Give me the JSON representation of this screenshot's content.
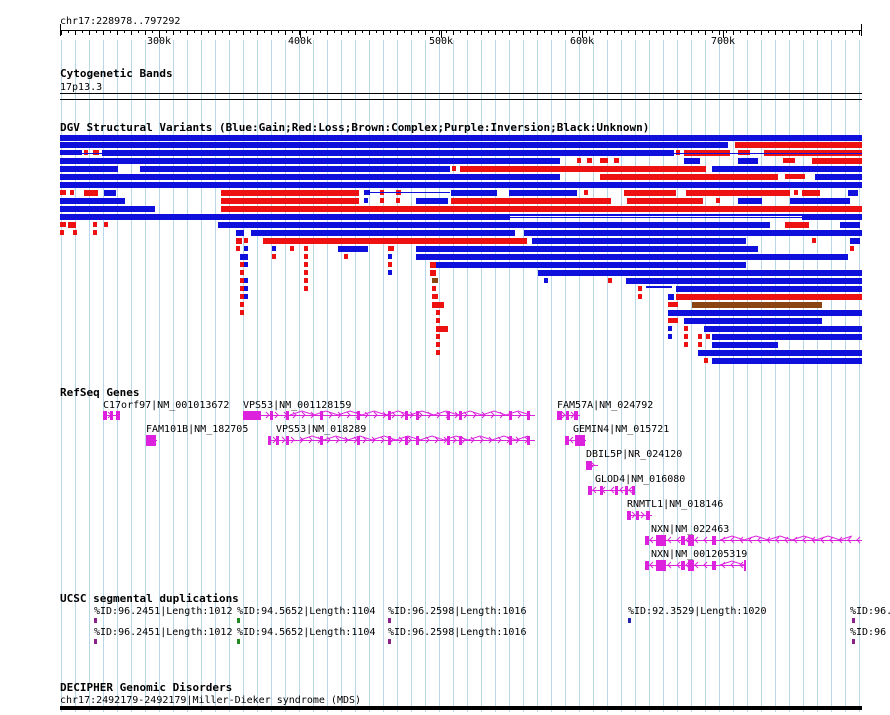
{
  "locus": "chr17:228978..797292",
  "ruler": {
    "ticks": [
      "300k",
      "400k",
      "500k",
      "600k",
      "700k"
    ]
  },
  "colors": {
    "gain": "#1010dd",
    "loss": "#ee1111",
    "complex": "#8b4513",
    "gene": "#dd22dd",
    "grid": "#b8d8ea",
    "segdup_purple": "#882288",
    "segdup_green": "#228822",
    "segdup_blue": "#2222aa"
  },
  "tracks": {
    "cytobands": {
      "title": "Cytogenetic Bands",
      "label": "17p13.3"
    },
    "dgv": {
      "title": "DGV Structural Variants (Blue:Gain;Red:Loss;Brown:Complex;Purple:Inversion;Black:Unknown)"
    },
    "refseq": {
      "title": "RefSeq Genes",
      "genes": [
        {
          "label": "C17orf97|NM_001013672"
        },
        {
          "label": "VPS53|NM_001128159"
        },
        {
          "label": "FAM57A|NM_024792"
        },
        {
          "label": "FAM101B|NM_182705"
        },
        {
          "label": "VPS53|NM_018289"
        },
        {
          "label": "GEMIN4|NM_015721"
        },
        {
          "label": "DBIL5P|NR_024120"
        },
        {
          "label": "GLOD4|NM_016080"
        },
        {
          "label": "RNMTL1|NM_018146"
        },
        {
          "label": "NXN|NM_022463"
        },
        {
          "label": "NXN|NM_001205319"
        }
      ]
    },
    "segdups": {
      "title": "UCSC segmental duplications",
      "row1": [
        "%ID:96.2451|Length:1012",
        "%ID:94.5652|Length:1104",
        "%ID:96.2598|Length:1016",
        "%ID:92.3529|Length:1020",
        "%ID:96."
      ],
      "row2": [
        "%ID:96.2451|Length:1012",
        "%ID:94.5652|Length:1104",
        "%ID:96.2598|Length:1016",
        "%ID:96"
      ]
    },
    "decipher": {
      "title": "DECIPHER Genomic Disorders",
      "label": "chr17:2492179-2492179|Miller-Dieker syndrome (MDS)"
    }
  }
}
